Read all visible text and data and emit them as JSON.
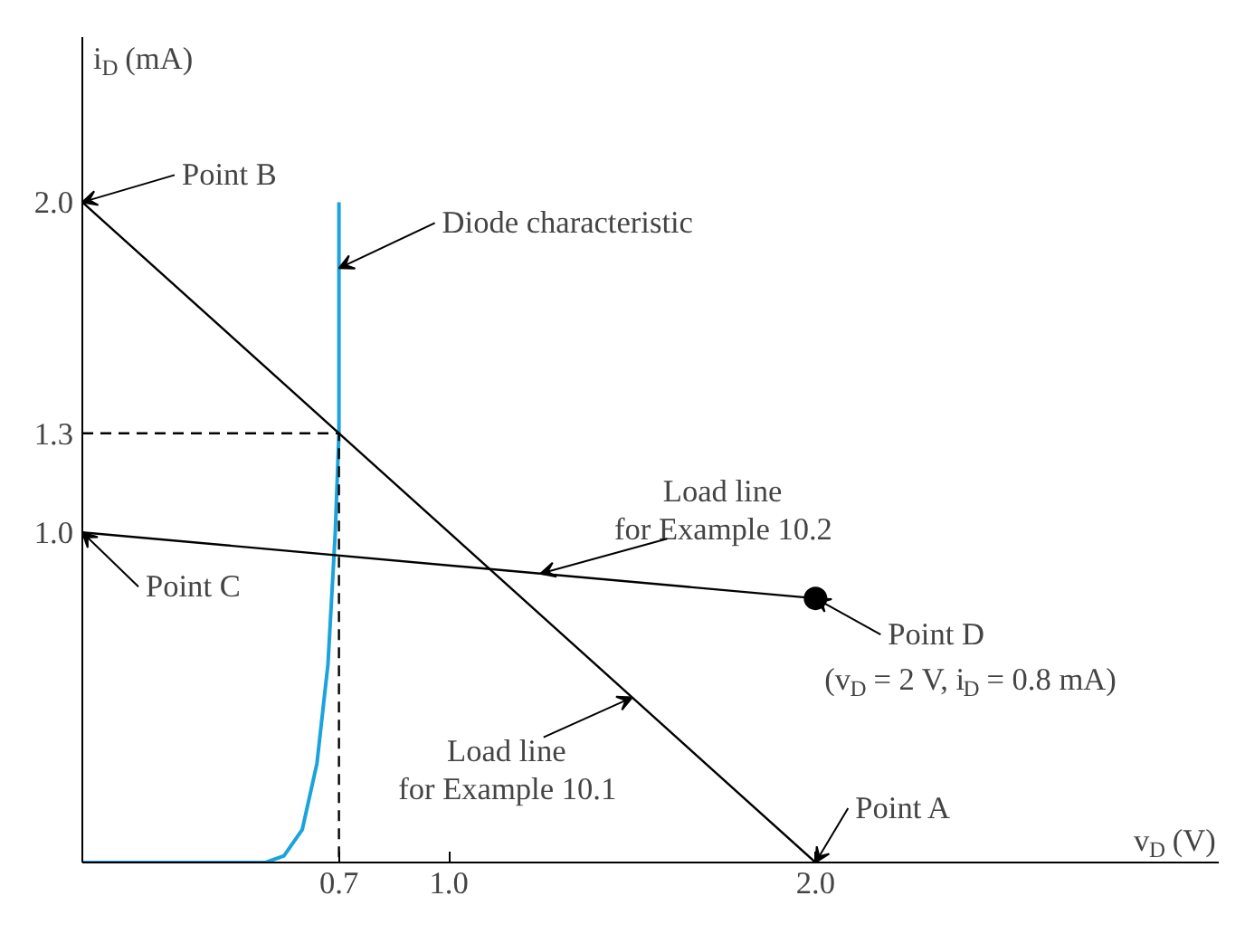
{
  "chart_data": {
    "type": "line",
    "xlabel": "v$_{D}$ (V)",
    "ylabel": "i$_{D}$ (mA)",
    "xlim": [
      0,
      3.1
    ],
    "ylim": [
      0,
      2.5
    ],
    "xticks": [
      0.7,
      {
        "value": 1.0,
        "label": "1.0"
      },
      {
        "value": 2.0,
        "label": "2.0"
      }
    ],
    "yticks": [
      {
        "value": 1.0,
        "label": "1.0"
      },
      1.3,
      {
        "value": 2.0,
        "label": "2.0"
      }
    ],
    "grid": false,
    "series": [
      {
        "color": "#1aa3dc",
        "x": [
          0,
          0.5,
          0.55,
          0.6,
          0.64,
          0.67,
          0.69,
          0.7,
          0.7
        ],
        "values": [
          0,
          0,
          0.02,
          0.1,
          0.3,
          0.6,
          1.0,
          1.3,
          2.0
        ]
      },
      {
        "color": "#000000",
        "x": [
          0,
          2.0
        ],
        "values": [
          2.0,
          0
        ]
      },
      {
        "color": "#000000",
        "x": [
          0,
          2.0
        ],
        "values": [
          1.0,
          0.8
        ]
      },
      {
        "color": "#000000",
        "line_style": "dashed",
        "x": [
          0,
          0.7,
          0.7
        ],
        "values": [
          1.3,
          1.3,
          0
        ]
      },
      {
        "type": "scatter",
        "color": "#000000",
        "marker": "circle",
        "x": [
          2.0
        ],
        "values": [
          0.8
        ]
      }
    ],
    "annotations": [
      {
        "text": "Point B",
        "x": 0,
        "y": 2.0
      },
      {
        "text": "Diode characteristic",
        "x": 0.7,
        "y": 1.8
      },
      {
        "text": "Point C",
        "x": 0,
        "y": 1.0
      },
      {
        "text": "Load line\nfor Example 10.2",
        "x": 1.25,
        "y": 0.875
      },
      {
        "text": "Point D",
        "x": 2.0,
        "y": 0.8
      },
      "(v$_{D}$ = 2 V, i$_{D}$ = 0.8 mA)",
      {
        "text": "Load line\nfor Example 10.1",
        "x": 1.5,
        "y": 0.5
      },
      {
        "text": "Point A",
        "x": 2.0,
        "y": 0
      }
    ]
  }
}
